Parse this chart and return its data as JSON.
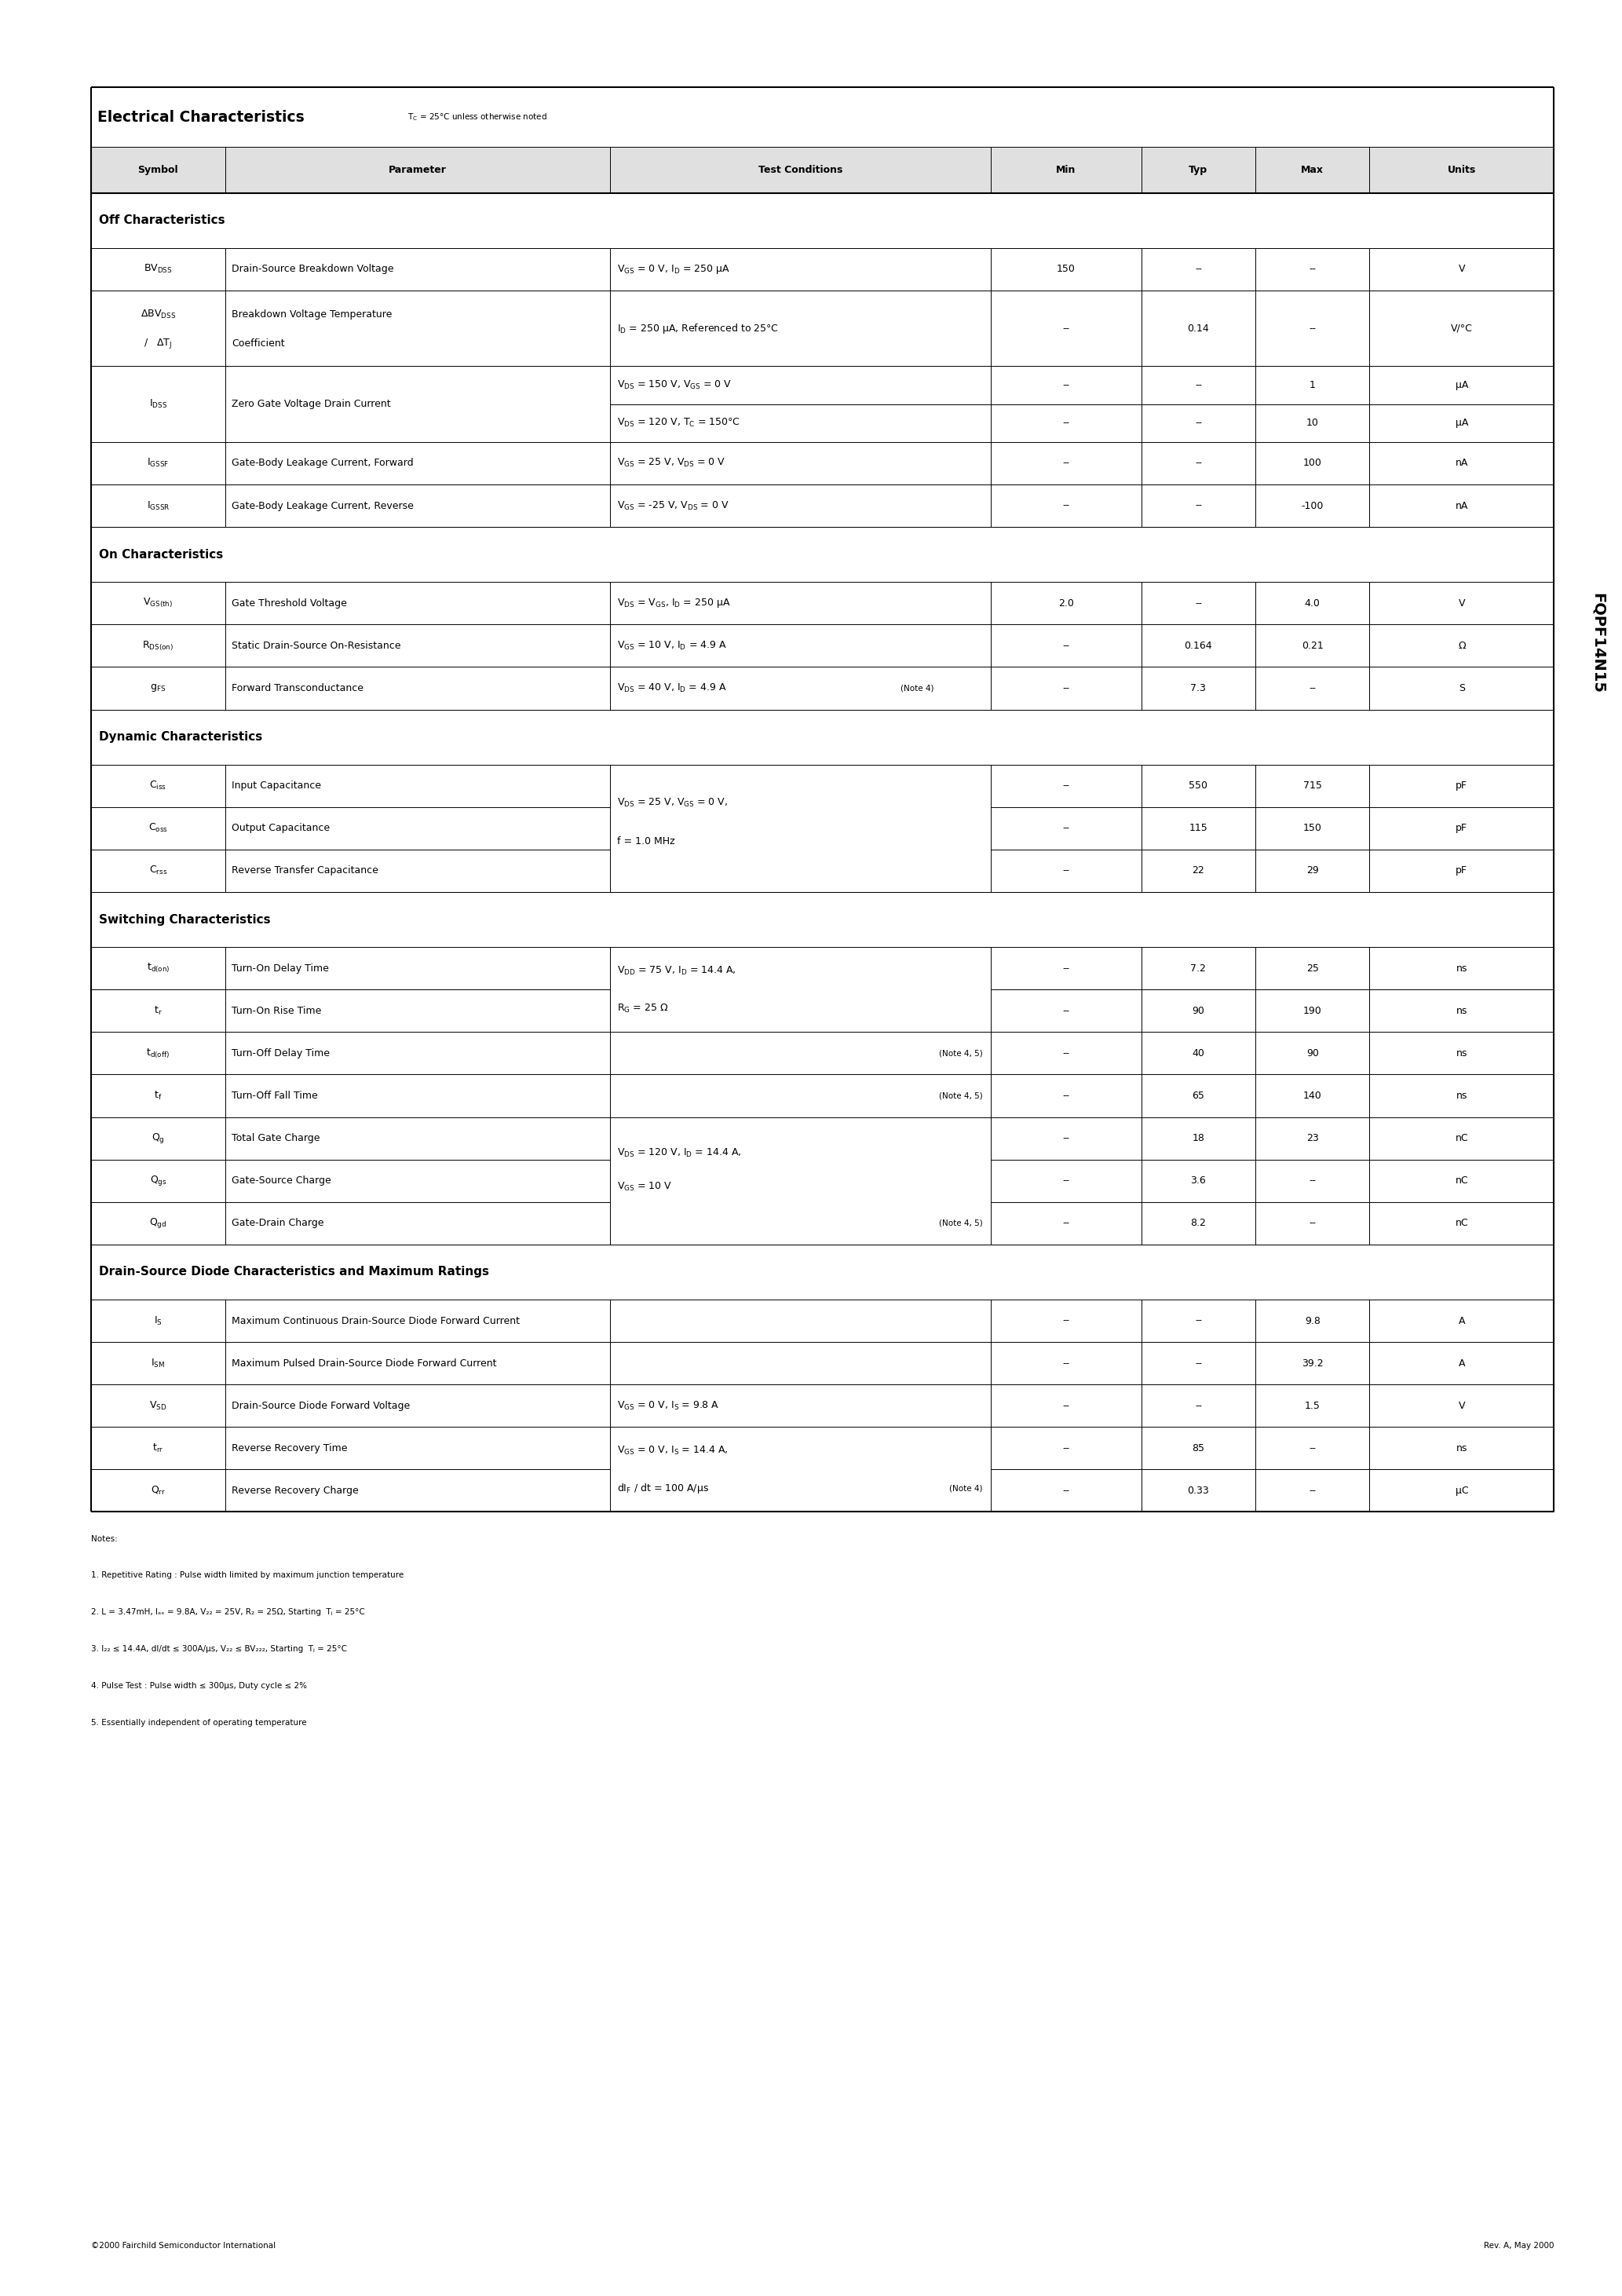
{
  "title": "Electrical Characteristics",
  "title_note": "T_C = 25°C unless otherwise noted",
  "part_number": "FQPF14N15",
  "footer_left": "©2000 Fairchild Semiconductor International",
  "footer_right": "Rev. A, May 2000"
}
